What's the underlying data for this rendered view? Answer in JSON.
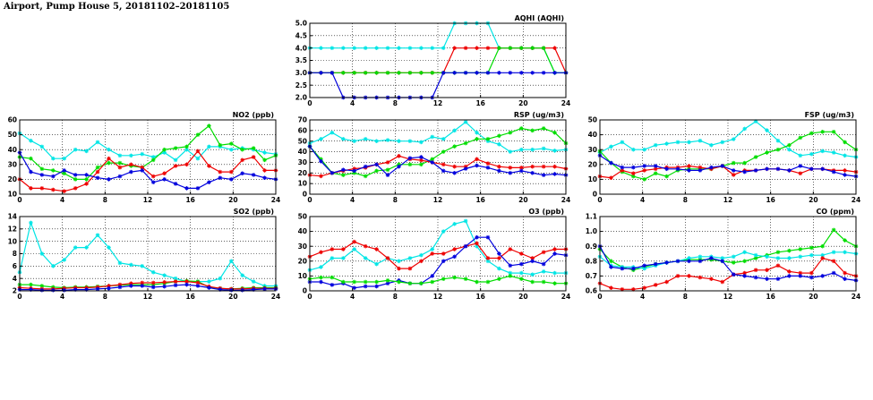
{
  "title": "Airport, Pump House 5, 20181102–20181105",
  "colors": {
    "blue": "#0000dd",
    "red": "#ee0000",
    "green": "#00dd00",
    "cyan": "#00e5e5"
  },
  "chart_data": [
    {
      "id": "aqhi",
      "type": "line",
      "title": "AQHI (AQHI)",
      "xlim": [
        0,
        24
      ],
      "xticks": [
        0,
        4,
        8,
        12,
        16,
        20,
        24
      ],
      "ylim": [
        2.0,
        5.0
      ],
      "yticks": [
        2.0,
        2.5,
        3.0,
        3.5,
        4.0,
        4.5,
        5.0
      ],
      "ytick_labels": [
        "2.0",
        "2.5",
        "3.0",
        "3.5",
        "4.0",
        "4.5",
        "5.0"
      ],
      "series": [
        {
          "name": "cyan",
          "color": "cyan",
          "values": [
            4,
            4,
            4,
            4,
            4,
            4,
            4,
            4,
            4,
            4,
            4,
            4,
            4,
            5,
            5,
            5,
            5,
            4,
            4,
            4,
            4,
            4,
            3,
            3
          ]
        },
        {
          "name": "red",
          "color": "red",
          "values": [
            3,
            3,
            3,
            3,
            3,
            3,
            3,
            3,
            3,
            3,
            3,
            3,
            3,
            4,
            4,
            4,
            4,
            4,
            4,
            4,
            4,
            4,
            4,
            3
          ]
        },
        {
          "name": "green",
          "color": "green",
          "values": [
            3,
            3,
            3,
            3,
            3,
            3,
            3,
            3,
            3,
            3,
            3,
            3,
            3,
            3,
            3,
            3,
            3,
            4,
            4,
            4,
            4,
            4,
            3,
            3
          ]
        },
        {
          "name": "blue",
          "color": "blue",
          "values": [
            3,
            3,
            3,
            2,
            2,
            2,
            2,
            2,
            2,
            2,
            2,
            2,
            3,
            3,
            3,
            3,
            3,
            3,
            3,
            3,
            3,
            3,
            3,
            3
          ]
        }
      ]
    },
    {
      "id": "no2",
      "type": "line",
      "title": "NO2 (ppb)",
      "xlim": [
        0,
        24
      ],
      "xticks": [
        0,
        4,
        8,
        12,
        16,
        20,
        24
      ],
      "ylim": [
        10,
        60
      ],
      "yticks": [
        10,
        20,
        30,
        40,
        50,
        60
      ],
      "ytick_labels": [
        "10",
        "20",
        "30",
        "40",
        "50",
        "60"
      ],
      "series": [
        {
          "name": "cyan",
          "color": "cyan",
          "values": [
            51,
            46,
            42,
            34,
            34,
            40,
            39,
            45,
            40,
            36,
            36,
            37,
            35,
            38,
            33,
            40,
            34,
            42,
            42,
            40,
            41,
            40,
            38,
            37
          ]
        },
        {
          "name": "green",
          "color": "green",
          "values": [
            35,
            34,
            27,
            26,
            24,
            20,
            20,
            28,
            31,
            31,
            29,
            28,
            33,
            40,
            41,
            42,
            50,
            56,
            43,
            44,
            40,
            41,
            33,
            36
          ]
        },
        {
          "name": "red",
          "color": "red",
          "values": [
            20,
            14,
            14,
            13,
            12,
            14,
            17,
            25,
            34,
            28,
            30,
            28,
            22,
            24,
            29,
            30,
            39,
            29,
            25,
            25,
            33,
            35,
            26,
            26
          ]
        },
        {
          "name": "blue",
          "color": "blue",
          "values": [
            38,
            25,
            23,
            22,
            26,
            23,
            23,
            21,
            20,
            22,
            25,
            26,
            18,
            20,
            17,
            14,
            14,
            18,
            21,
            20,
            24,
            23,
            21,
            20
          ]
        }
      ]
    },
    {
      "id": "rsp",
      "type": "line",
      "title": "RSP (ug/m3)",
      "xlim": [
        0,
        24
      ],
      "xticks": [
        0,
        4,
        8,
        12,
        16,
        20,
        24
      ],
      "ylim": [
        0,
        70
      ],
      "yticks": [
        0,
        10,
        20,
        30,
        40,
        50,
        60,
        70
      ],
      "ytick_labels": [
        "0",
        "10",
        "20",
        "30",
        "40",
        "50",
        "60",
        "70"
      ],
      "series": [
        {
          "name": "cyan",
          "color": "cyan",
          "values": [
            48,
            52,
            58,
            52,
            50,
            52,
            50,
            51,
            50,
            50,
            49,
            54,
            52,
            60,
            68,
            58,
            50,
            47,
            40,
            42,
            42,
            43,
            41,
            42
          ]
        },
        {
          "name": "green",
          "color": "green",
          "values": [
            45,
            33,
            20,
            18,
            20,
            17,
            22,
            23,
            28,
            28,
            28,
            33,
            40,
            45,
            48,
            52,
            52,
            55,
            58,
            62,
            60,
            62,
            58,
            48
          ]
        },
        {
          "name": "red",
          "color": "red",
          "values": [
            18,
            17,
            20,
            22,
            24,
            25,
            28,
            30,
            36,
            33,
            32,
            30,
            28,
            26,
            26,
            33,
            29,
            26,
            25,
            25,
            26,
            26,
            26,
            24
          ]
        },
        {
          "name": "blue",
          "color": "blue",
          "values": [
            45,
            31,
            20,
            23,
            22,
            26,
            28,
            18,
            26,
            34,
            35,
            30,
            22,
            20,
            24,
            27,
            25,
            22,
            20,
            22,
            20,
            18,
            19,
            18
          ]
        }
      ]
    },
    {
      "id": "fsp",
      "type": "line",
      "title": "FSP (ug/m3)",
      "xlim": [
        0,
        24
      ],
      "xticks": [
        0,
        4,
        8,
        12,
        16,
        20,
        24
      ],
      "ylim": [
        0,
        50
      ],
      "yticks": [
        0,
        10,
        20,
        30,
        40,
        50
      ],
      "ytick_labels": [
        "0",
        "10",
        "20",
        "30",
        "40",
        "50"
      ],
      "series": [
        {
          "name": "cyan",
          "color": "cyan",
          "values": [
            28,
            32,
            35,
            30,
            30,
            33,
            34,
            35,
            35,
            36,
            33,
            35,
            37,
            44,
            49,
            43,
            36,
            30,
            26,
            27,
            29,
            28,
            26,
            25
          ]
        },
        {
          "name": "green",
          "color": "green",
          "values": [
            29,
            21,
            15,
            12,
            10,
            14,
            12,
            16,
            17,
            17,
            17,
            19,
            21,
            21,
            25,
            28,
            30,
            33,
            38,
            41,
            42,
            42,
            35,
            30
          ]
        },
        {
          "name": "red",
          "color": "red",
          "values": [
            12,
            11,
            16,
            14,
            16,
            17,
            18,
            18,
            19,
            18,
            17,
            19,
            13,
            16,
            16,
            17,
            17,
            16,
            14,
            17,
            17,
            16,
            16,
            15
          ]
        },
        {
          "name": "blue",
          "color": "blue",
          "values": [
            26,
            21,
            18,
            18,
            19,
            19,
            17,
            17,
            16,
            16,
            18,
            19,
            16,
            15,
            16,
            17,
            17,
            16,
            19,
            17,
            17,
            15,
            13,
            12
          ]
        }
      ]
    },
    {
      "id": "so2",
      "type": "line",
      "title": "SO2 (ppb)",
      "xlim": [
        0,
        24
      ],
      "xticks": [
        0,
        4,
        8,
        12,
        16,
        20,
        24
      ],
      "ylim": [
        2,
        14
      ],
      "yticks": [
        2,
        4,
        6,
        8,
        10,
        12,
        14
      ],
      "ytick_labels": [
        "2",
        "4",
        "6",
        "8",
        "10",
        "12",
        "14"
      ],
      "series": [
        {
          "name": "cyan",
          "color": "cyan",
          "values": [
            5,
            13,
            8,
            6,
            7,
            9,
            9,
            11,
            9,
            6.5,
            6.2,
            6,
            5,
            4.5,
            4,
            3.5,
            3.5,
            3.5,
            4,
            6.8,
            4.5,
            3.5,
            2.8,
            2.8
          ]
        },
        {
          "name": "green",
          "color": "green",
          "values": [
            3,
            3,
            2.8,
            2.6,
            2.5,
            2.6,
            2.6,
            2.7,
            2.8,
            2.9,
            3,
            3,
            3,
            3.2,
            3.5,
            3.6,
            3.5,
            2.6,
            2.4,
            2.3,
            2.4,
            2.5,
            2.5,
            2.5
          ]
        },
        {
          "name": "red",
          "color": "red",
          "values": [
            2.5,
            2.4,
            2.3,
            2.3,
            2.4,
            2.5,
            2.5,
            2.6,
            2.8,
            3,
            3.2,
            3.3,
            3.3,
            3.4,
            3.5,
            3.5,
            3.3,
            2.7,
            2.4,
            2.3,
            2.3,
            2.4,
            2.4,
            2.4
          ]
        },
        {
          "name": "blue",
          "color": "blue",
          "values": [
            2.2,
            2.2,
            2.1,
            2.1,
            2.1,
            2.2,
            2.2,
            2.3,
            2.4,
            2.6,
            2.8,
            2.8,
            2.6,
            2.7,
            2.9,
            3,
            2.8,
            2.5,
            2.2,
            2.1,
            2.1,
            2.2,
            2.3,
            2.3
          ]
        }
      ]
    },
    {
      "id": "o3",
      "type": "line",
      "title": "O3 (ppb)",
      "xlim": [
        0,
        24
      ],
      "xticks": [
        0,
        4,
        8,
        12,
        16,
        20,
        24
      ],
      "ylim": [
        0,
        50
      ],
      "yticks": [
        0,
        10,
        20,
        30,
        40,
        50
      ],
      "ytick_labels": [
        "0",
        "10",
        "20",
        "30",
        "40",
        "50"
      ],
      "series": [
        {
          "name": "cyan",
          "color": "cyan",
          "values": [
            14,
            16,
            22,
            22,
            28,
            22,
            18,
            22,
            20,
            22,
            24,
            28,
            40,
            45,
            47,
            30,
            20,
            15,
            12,
            12,
            11,
            13,
            12,
            12
          ]
        },
        {
          "name": "red",
          "color": "red",
          "values": [
            23,
            26,
            28,
            28,
            33,
            30,
            28,
            22,
            15,
            15,
            20,
            25,
            25,
            28,
            30,
            32,
            22,
            22,
            28,
            25,
            22,
            26,
            28,
            28
          ]
        },
        {
          "name": "blue",
          "color": "blue",
          "values": [
            6,
            6,
            4,
            5,
            2,
            3,
            3,
            5,
            7,
            5,
            5,
            10,
            20,
            23,
            30,
            36,
            36,
            25,
            17,
            18,
            20,
            18,
            25,
            24
          ]
        },
        {
          "name": "green",
          "color": "green",
          "values": [
            8,
            9,
            9,
            6,
            6,
            6,
            6,
            7,
            6,
            5,
            5,
            6,
            8,
            9,
            8,
            6,
            6,
            8,
            10,
            8,
            6,
            6,
            5,
            5
          ]
        }
      ]
    },
    {
      "id": "co",
      "type": "line",
      "title": "CO (ppm)",
      "xlim": [
        0,
        24
      ],
      "xticks": [
        0,
        4,
        8,
        12,
        16,
        20,
        24
      ],
      "ylim": [
        0.6,
        1.1
      ],
      "yticks": [
        0.6,
        0.7,
        0.8,
        0.9,
        1.0,
        1.1
      ],
      "ytick_labels": [
        "0.6",
        "0.7",
        "0.8",
        "0.9",
        "1.0",
        "1.1"
      ],
      "series": [
        {
          "name": "green",
          "color": "green",
          "values": [
            0.88,
            0.8,
            0.76,
            0.74,
            0.76,
            0.78,
            0.79,
            0.8,
            0.81,
            0.81,
            0.81,
            0.8,
            0.79,
            0.8,
            0.82,
            0.84,
            0.86,
            0.87,
            0.88,
            0.89,
            0.9,
            1.01,
            0.94,
            0.9
          ]
        },
        {
          "name": "cyan",
          "color": "cyan",
          "values": [
            0.83,
            0.77,
            0.76,
            0.76,
            0.75,
            0.77,
            0.79,
            0.8,
            0.82,
            0.83,
            0.83,
            0.82,
            0.83,
            0.86,
            0.84,
            0.83,
            0.82,
            0.82,
            0.83,
            0.84,
            0.84,
            0.86,
            0.86,
            0.85
          ]
        },
        {
          "name": "red",
          "color": "red",
          "values": [
            0.65,
            0.62,
            0.61,
            0.61,
            0.62,
            0.64,
            0.66,
            0.7,
            0.7,
            0.69,
            0.68,
            0.66,
            0.71,
            0.72,
            0.74,
            0.74,
            0.77,
            0.73,
            0.72,
            0.72,
            0.82,
            0.8,
            0.72,
            0.7
          ]
        },
        {
          "name": "blue",
          "color": "blue",
          "values": [
            0.9,
            0.76,
            0.75,
            0.75,
            0.77,
            0.78,
            0.79,
            0.8,
            0.8,
            0.8,
            0.82,
            0.8,
            0.71,
            0.7,
            0.69,
            0.68,
            0.68,
            0.7,
            0.7,
            0.69,
            0.7,
            0.72,
            0.68,
            0.67
          ]
        }
      ]
    }
  ]
}
